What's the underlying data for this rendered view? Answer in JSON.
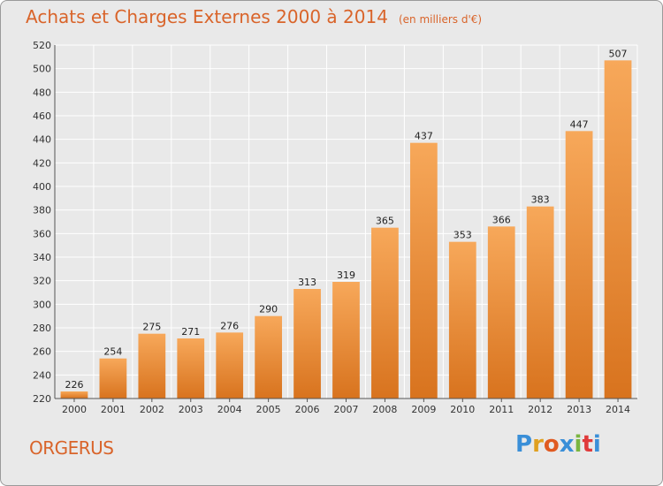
{
  "header": {
    "title": "Achats et Charges Externes 2000 à 2014",
    "unit": "(en milliers d'€)"
  },
  "footer": {
    "city": "ORGERUS",
    "logo_letters": [
      "P",
      "r",
      "o",
      "x",
      "i",
      "t",
      "i"
    ],
    "logo_colors": [
      "#3a8fd8",
      "#e0a020",
      "#e05a20",
      "#3a8fd8",
      "#7ab540",
      "#e03a3a",
      "#3a8fd8"
    ]
  },
  "chart_data": {
    "type": "bar",
    "title": "Achats et Charges Externes 2000 à 2014",
    "subtitle": "(en milliers d'€)",
    "categories": [
      "2000",
      "2001",
      "2002",
      "2003",
      "2004",
      "2005",
      "2006",
      "2007",
      "2008",
      "2009",
      "2010",
      "2011",
      "2012",
      "2013",
      "2014"
    ],
    "values": [
      226,
      254,
      275,
      271,
      276,
      290,
      313,
      319,
      365,
      437,
      353,
      366,
      383,
      447,
      507
    ],
    "ylim": [
      220,
      520
    ],
    "yticks": [
      220,
      240,
      260,
      280,
      300,
      320,
      340,
      360,
      380,
      400,
      420,
      440,
      460,
      480,
      500,
      520
    ],
    "grid": true,
    "bar_color_top": "#f7a85a",
    "bar_color_bottom": "#d8731e"
  }
}
